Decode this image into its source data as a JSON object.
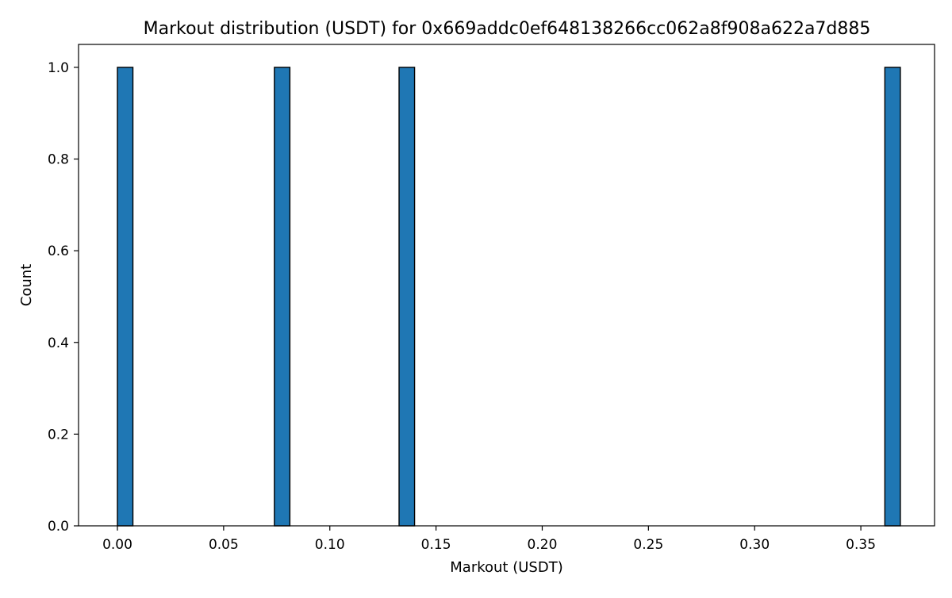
{
  "chart_data": {
    "type": "bar",
    "subtype": "histogram",
    "title": "Markout distribution (USDT) for 0x669addc0ef648138266cc062a8f908a622a7d885",
    "xlabel": "Markout (USDT)",
    "ylabel": "Count",
    "xlim": [
      -0.0183,
      0.3847
    ],
    "ylim": [
      0.0,
      1.05
    ],
    "xticks": [
      0.0,
      0.05,
      0.1,
      0.15,
      0.2,
      0.25,
      0.3,
      0.35
    ],
    "xtick_labels": [
      "0.00",
      "0.05",
      "0.10",
      "0.15",
      "0.20",
      "0.25",
      "0.30",
      "0.35"
    ],
    "yticks": [
      0.0,
      0.2,
      0.4,
      0.6,
      0.8,
      1.0
    ],
    "ytick_labels": [
      "0.0",
      "0.2",
      "0.4",
      "0.6",
      "0.8",
      "1.0"
    ],
    "bins": [
      {
        "x0": 0.0,
        "x1": 0.0073,
        "count": 1
      },
      {
        "x0": 0.0739,
        "x1": 0.0812,
        "count": 1
      },
      {
        "x0": 0.1326,
        "x1": 0.1399,
        "count": 1
      },
      {
        "x0": 0.3613,
        "x1": 0.3686,
        "count": 1
      }
    ],
    "bar_color": "#1f77b4",
    "edge_color": "#000000",
    "grid": false,
    "legend": "none"
  }
}
